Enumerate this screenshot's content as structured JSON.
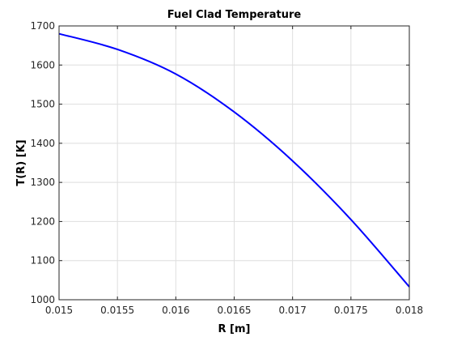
{
  "chart_data": {
    "type": "line",
    "title": "Fuel Clad Temperature",
    "xlabel": "R [m]",
    "ylabel": "T(R) [K]",
    "xlim": [
      0.015,
      0.018
    ],
    "ylim": [
      1000,
      1700
    ],
    "xticks": [
      0.015,
      0.0155,
      0.016,
      0.0165,
      0.017,
      0.0175,
      0.018
    ],
    "xtick_labels": [
      "0.015",
      "0.0155",
      "0.016",
      "0.0165",
      "0.017",
      "0.0175",
      "0.018"
    ],
    "yticks": [
      1000,
      1100,
      1200,
      1300,
      1400,
      1500,
      1600,
      1700
    ],
    "ytick_labels": [
      "1000",
      "1100",
      "1200",
      "1300",
      "1400",
      "1500",
      "1600",
      "1700"
    ],
    "grid": true,
    "series": [
      {
        "color": "#0000ff",
        "x": [
          0.015,
          0.0155,
          0.016,
          0.0165,
          0.017,
          0.0175,
          0.018
        ],
        "y": [
          1680,
          1640,
          1577,
          1480,
          1355,
          1205,
          1033
        ]
      }
    ]
  }
}
